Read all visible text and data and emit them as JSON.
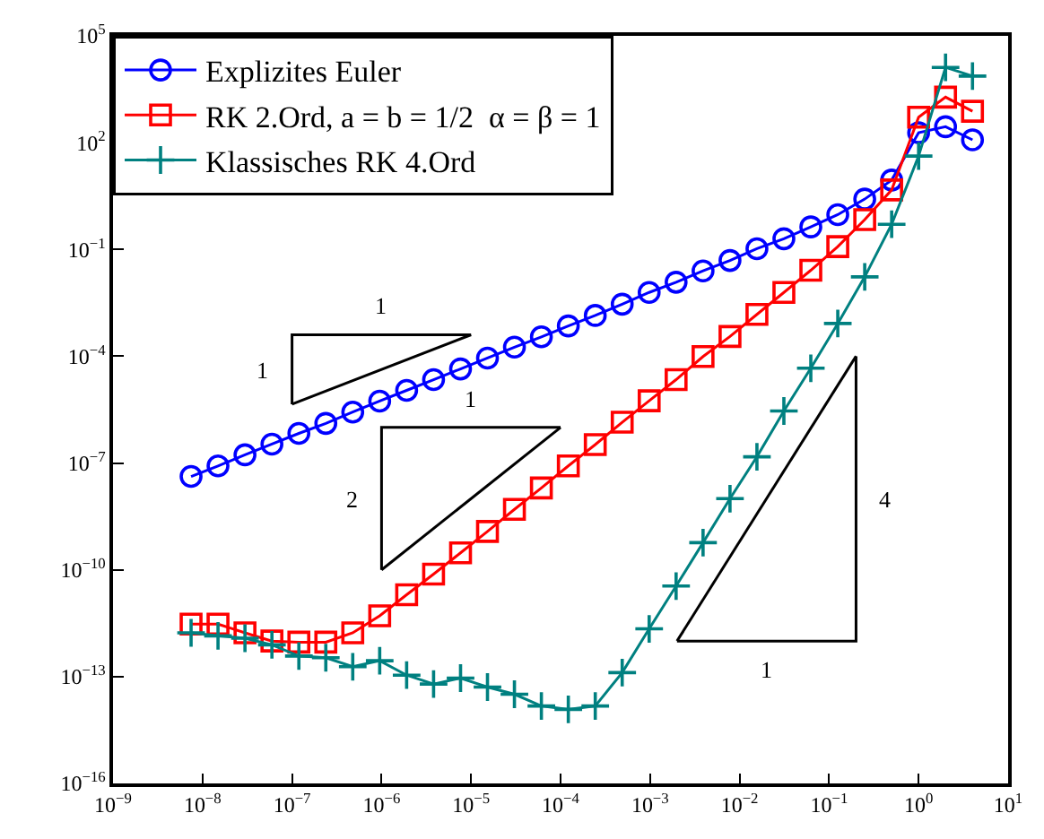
{
  "chart_data": {
    "type": "line",
    "log": "xy",
    "legend": "top left",
    "grid": false,
    "line_style": "solid",
    "xlim": [
      1e-09,
      10
    ],
    "ylim": [
      1e-16,
      100000.0
    ],
    "xticks": [
      {
        "value": 1e-09,
        "label": "10$^{−9}$"
      },
      {
        "value": 1e-08,
        "label": "10$^{−8}$"
      },
      {
        "value": 1e-07,
        "label": "10$^{−7}$"
      },
      {
        "value": 1e-06,
        "label": "10$^{−6}$"
      },
      {
        "value": 1e-05,
        "label": "10$^{−5}$"
      },
      {
        "value": 0.0001,
        "label": "10$^{−4}$"
      },
      {
        "value": 0.001,
        "label": "10$^{−3}$"
      },
      {
        "value": 0.01,
        "label": "10$^{−2}$"
      },
      {
        "value": 0.1,
        "label": "10$^{−1}$"
      },
      {
        "value": 1,
        "label": "10$^{0}$"
      },
      {
        "value": 10,
        "label": "10$^{1}$"
      }
    ],
    "yticks": [
      {
        "value": 1e-16,
        "label": "10$^{−16}$"
      },
      {
        "value": 1e-13,
        "label": "10$^{−13}$"
      },
      {
        "value": 1e-10,
        "label": "10$^{−10}$"
      },
      {
        "value": 1e-07,
        "label": "10$^{−7}$"
      },
      {
        "value": 0.0001,
        "label": "10$^{−4}$"
      },
      {
        "value": 0.1,
        "label": "10$^{−1}$"
      },
      {
        "value": 100,
        "label": "10$^{2}$"
      },
      {
        "value": 100000.0,
        "label": "10$^{5}$"
      }
    ],
    "x": [
      7.450580596923828e-09,
      1.4901161193847656e-08,
      2.9802322387695312e-08,
      5.960464477539063e-08,
      1.1920928955078125e-07,
      2.384185791015625e-07,
      4.76837158203125e-07,
      9.5367431640625e-07,
      1.9073486328125e-06,
      3.814697265625e-06,
      7.62939453125e-06,
      1.52587890625e-05,
      3.0517578125e-05,
      6.103515625e-05,
      0.0001220703125,
      0.000244140625,
      0.00048828125,
      0.0009765625,
      0.001953125,
      0.00390625,
      0.0078125,
      0.015625,
      0.03125,
      0.0625,
      0.125,
      0.25,
      0.5,
      1,
      2,
      4
    ],
    "series": [
      {
        "name": "Explizites Euler",
        "color": "#0000ff",
        "marker": "circle",
        "values": [
          4.2e-08,
          8.3e-08,
          1.7e-07,
          3.4e-07,
          6.8e-07,
          1.3e-06,
          2.7e-06,
          5.5e-06,
          1.1e-05,
          2.2e-05,
          4.4e-05,
          8.9e-05,
          0.00018,
          0.00035,
          0.00071,
          0.0014,
          0.0029,
          0.0062,
          0.012,
          0.025,
          0.049,
          0.105,
          0.2,
          0.43,
          0.95,
          2.6,
          8.9,
          190,
          280,
          120
        ]
      },
      {
        "name": "RK 2.Ord, a = b = 1/2  α = β = 1",
        "color": "#ff0000",
        "marker": "square",
        "values": [
          3e-12,
          3e-12,
          1.7e-12,
          1e-12,
          9.3e-13,
          9.3e-13,
          1.7e-12,
          5.1e-12,
          2e-11,
          7.6e-11,
          3e-10,
          1.2e-09,
          5e-09,
          2e-08,
          8.3e-08,
          3.3e-07,
          1.4e-06,
          5.6e-06,
          2.2e-05,
          9.8e-05,
          0.00036,
          0.0015,
          0.0062,
          0.026,
          0.12,
          0.69,
          4.7,
          520,
          1900,
          760
        ]
      },
      {
        "name": "Klassisches RK 4.Ord",
        "color": "#008080",
        "marker": "cross",
        "values": [
          1.7e-12,
          1.4e-12,
          1.2e-12,
          7.8e-13,
          3.8e-13,
          3.4e-13,
          1.9e-13,
          2.8e-13,
          1.1e-13,
          6.2e-14,
          9.1e-14,
          5.1e-14,
          3.2e-14,
          1.5e-14,
          1.2e-14,
          1.5e-14,
          1.3e-13,
          2.2e-12,
          3.5e-11,
          5.8e-10,
          1e-08,
          1.5e-07,
          2.9e-06,
          4.6e-05,
          0.00083,
          0.017,
          0.51,
          42,
          13000,
          7400
        ]
      },
      {
        "color": "#000000",
        "marker": "none",
        "x": [
          1e-07,
          1e-07,
          1e-05
        ],
        "values": [
          4.5e-06,
          0.0004,
          0.0004
        ]
      },
      {
        "color": "#000000",
        "marker": "none",
        "x": [
          1e-07,
          1e-05
        ],
        "values": [
          4.5e-06,
          0.0004
        ]
      },
      {
        "color": "#000000",
        "marker": "none",
        "x": [
          1e-06,
          1e-06,
          0.0001
        ],
        "values": [
          1e-10,
          1e-06,
          1e-06
        ]
      },
      {
        "color": "#000000",
        "marker": "none",
        "x": [
          1e-06,
          0.0001
        ],
        "values": [
          1e-10,
          1e-06
        ]
      },
      {
        "color": "#000000",
        "marker": "none",
        "x": [
          0.002,
          0.2,
          0.2
        ],
        "values": [
          1e-12,
          1e-12,
          0.0001
        ]
      },
      {
        "color": "#000000",
        "marker": "none",
        "x": [
          0.002,
          0.2
        ],
        "values": [
          1e-12,
          0.0001
        ]
      }
    ],
    "annotations": [
      {
        "text": "1",
        "x": 1e-06,
        "y": 0.0004
      },
      {
        "text": "1",
        "x": 1e-07,
        "y": 4.2e-05
      },
      {
        "text": "1",
        "x": 1e-05,
        "y": 1e-06
      },
      {
        "text": "2",
        "x": 1e-06,
        "y": 1e-08
      },
      {
        "text": "4",
        "x": 0.2,
        "y": 1e-08
      },
      {
        "text": "1",
        "x": 0.02,
        "y": 1e-12
      }
    ]
  }
}
